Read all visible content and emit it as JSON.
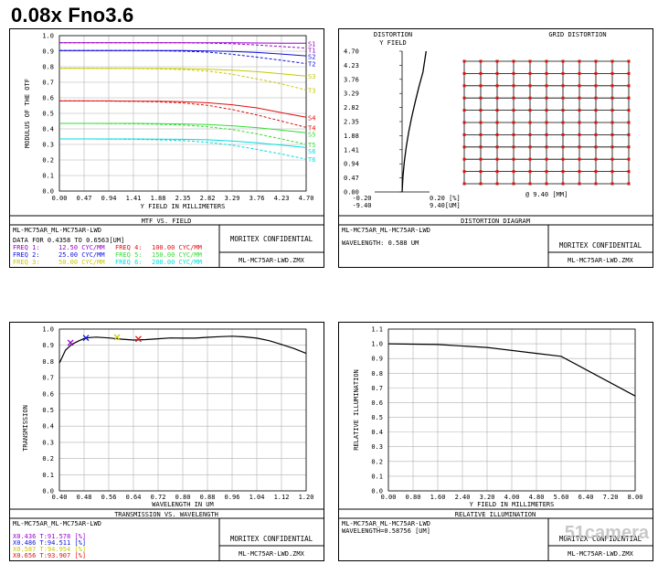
{
  "heading": "0.08x Fno3.6",
  "watermark": "51camera",
  "colors": {
    "purple": "#9900cc",
    "blue": "#1010e0",
    "yellow": "#c8c800",
    "red": "#e01010",
    "green": "#33dd33",
    "cyan": "#00dddd",
    "frame": "#000000"
  },
  "mtf": {
    "footer": {
      "title": "MTF VS. FIELD",
      "file1": "ML-MC75AR_ML-MC75AR-LWD",
      "data_for": "DATA FOR 0.4358 TO 0.6563[UM]",
      "freq_rows": [
        {
          "left_label": "FREQ 1:",
          "left_value": "12.50 CYC/MM",
          "right_label": "FREQ 4:",
          "right_value": "100.00 CYC/MM"
        },
        {
          "left_label": "FREQ 2:",
          "left_value": "25.00 CYC/MM",
          "right_label": "FREQ 5:",
          "right_value": "150.00 CYC/MM"
        },
        {
          "left_label": "FREQ 3:",
          "left_value": "50.00 CYC/MM",
          "right_label": "FREQ 6:",
          "right_value": "200.00 CYC/MM"
        }
      ],
      "confidential": "MORITEX CONFIDENTIAL",
      "file2": "ML-MC75AR-LWD.ZMX"
    }
  },
  "dist": {
    "footer": {
      "title": "DISTORTION DIAGRAM",
      "file1": "ML-MC75AR_ML-MC75AR-LWD",
      "wavelength": "WAVELENGTH: 0.588 UM",
      "confidential": "MORITEX CONFIDENTIAL",
      "file2": "ML-MC75AR-LWD.ZMX"
    }
  },
  "trans": {
    "footer": {
      "title": "TRANSMISSION VS. WAVELENGTH",
      "file1": "ML-MC75AR_ML-MC75AR-LWD",
      "rows": [
        "X0.436  T:91.578 [%]",
        "X0.486  T:94.511 [%]",
        "X0.587  T:94.954 [%]",
        "X0.656  T:93.907 [%]"
      ],
      "confidential": "MORITEX CONFIDENTIAL",
      "file2": "ML-MC75AR-LWD.ZMX"
    }
  },
  "ri": {
    "footer": {
      "title": "RELATIVE ILLUMINATION",
      "file1": "ML-MC75AR_ML-MC75AR-LWD",
      "wavelength": "WAVELENGTH=0.58756 [UM]",
      "confidential": "MORITEX CONFIDENTIAL",
      "file2": "ML-MC75AR-LWD.ZMX"
    }
  },
  "chart_data": [
    {
      "type": "line",
      "id": "mtf",
      "xlabel": "Y FIELD IN MILLIMETERS",
      "ylabel": "MODULUS OF THE OTF",
      "xlim": [
        0,
        4.7
      ],
      "ylim": [
        0,
        1.0
      ],
      "xticks": [
        "0.00",
        "0.47",
        "0.94",
        "1.41",
        "1.88",
        "2.35",
        "2.82",
        "3.29",
        "3.76",
        "4.23",
        "4.70"
      ],
      "yticks": [
        "0.0",
        "0.1",
        "0.2",
        "0.3",
        "0.4",
        "0.5",
        "0.6",
        "0.7",
        "0.8",
        "0.9",
        "1.0"
      ],
      "x": [
        0,
        0.47,
        0.94,
        1.41,
        1.88,
        2.35,
        2.82,
        3.29,
        3.76,
        4.23,
        4.7
      ],
      "series": [
        {
          "name": "S1",
          "color": "purple",
          "dash": false,
          "values": [
            0.955,
            0.955,
            0.955,
            0.955,
            0.955,
            0.955,
            0.955,
            0.954,
            0.953,
            0.952,
            0.951
          ]
        },
        {
          "name": "T1",
          "color": "purple",
          "dash": true,
          "values": [
            0.955,
            0.955,
            0.955,
            0.955,
            0.955,
            0.954,
            0.952,
            0.948,
            0.94,
            0.93,
            0.92
          ]
        },
        {
          "name": "S2",
          "color": "blue",
          "dash": false,
          "values": [
            0.905,
            0.905,
            0.905,
            0.905,
            0.905,
            0.904,
            0.902,
            0.898,
            0.892,
            0.882,
            0.87
          ]
        },
        {
          "name": "T2",
          "color": "blue",
          "dash": true,
          "values": [
            0.905,
            0.905,
            0.905,
            0.904,
            0.903,
            0.9,
            0.894,
            0.88,
            0.862,
            0.842,
            0.82
          ]
        },
        {
          "name": "S3",
          "color": "yellow",
          "dash": false,
          "values": [
            0.79,
            0.79,
            0.79,
            0.79,
            0.789,
            0.788,
            0.784,
            0.778,
            0.768,
            0.755,
            0.74
          ]
        },
        {
          "name": "T3",
          "color": "yellow",
          "dash": true,
          "values": [
            0.79,
            0.79,
            0.789,
            0.788,
            0.786,
            0.782,
            0.772,
            0.752,
            0.722,
            0.69,
            0.65
          ]
        },
        {
          "name": "S4",
          "color": "red",
          "dash": false,
          "values": [
            0.58,
            0.58,
            0.58,
            0.579,
            0.578,
            0.575,
            0.568,
            0.555,
            0.535,
            0.505,
            0.475
          ]
        },
        {
          "name": "T4",
          "color": "red",
          "dash": true,
          "values": [
            0.58,
            0.58,
            0.579,
            0.577,
            0.574,
            0.567,
            0.552,
            0.525,
            0.49,
            0.45,
            0.41
          ]
        },
        {
          "name": "S5",
          "color": "green",
          "dash": false,
          "values": [
            0.435,
            0.435,
            0.435,
            0.435,
            0.434,
            0.432,
            0.428,
            0.42,
            0.408,
            0.392,
            0.375
          ]
        },
        {
          "name": "T5",
          "color": "green",
          "dash": true,
          "values": [
            0.435,
            0.435,
            0.434,
            0.433,
            0.43,
            0.425,
            0.414,
            0.395,
            0.368,
            0.335,
            0.3
          ]
        },
        {
          "name": "S6",
          "color": "cyan",
          "dash": false,
          "values": [
            0.335,
            0.335,
            0.335,
            0.335,
            0.334,
            0.333,
            0.33,
            0.322,
            0.31,
            0.295,
            0.28
          ]
        },
        {
          "name": "T6",
          "color": "cyan",
          "dash": true,
          "values": [
            0.335,
            0.335,
            0.334,
            0.333,
            0.33,
            0.325,
            0.314,
            0.295,
            0.268,
            0.238,
            0.205
          ]
        }
      ]
    },
    {
      "type": "line",
      "id": "distortion",
      "title": "DISTORTION",
      "ylabel": "Y FIELD",
      "xlim": [
        -0.2,
        0.2
      ],
      "ylim": [
        0,
        4.7
      ],
      "yticks": [
        "4.70",
        "4.23",
        "3.76",
        "3.29",
        "2.82",
        "2.35",
        "1.88",
        "1.41",
        "0.94",
        "0.47",
        "0.00"
      ],
      "xtick_left": [
        "-0.20",
        "-9.40"
      ],
      "xtick_right": [
        "0.20 [%]",
        "9.40[UM]"
      ],
      "series": [
        {
          "name": "",
          "x": [
            0,
            0.006,
            0.016,
            0.03,
            0.048,
            0.07,
            0.095,
            0.122,
            0.152,
            0.175
          ],
          "y": [
            0,
            0.5,
            1.0,
            1.5,
            2.0,
            2.5,
            3.0,
            3.5,
            4.0,
            4.7
          ]
        }
      ]
    },
    {
      "type": "scatter",
      "id": "grid_distortion",
      "title": "GRID DISTORTION",
      "xlabel": "@ 9.40 [MM]",
      "grid_count": 11
    },
    {
      "type": "line",
      "id": "transmission",
      "xlabel": "WAVELENGTH IN UM",
      "ylabel": "TRANSMISSION",
      "xlim": [
        0.4,
        1.2
      ],
      "ylim": [
        0,
        1.0
      ],
      "xticks": [
        "0.40",
        "0.48",
        "0.56",
        "0.64",
        "0.72",
        "0.80",
        "0.88",
        "0.96",
        "1.04",
        "1.12",
        "1.20"
      ],
      "yticks": [
        "0.0",
        "0.1",
        "0.2",
        "0.3",
        "0.4",
        "0.5",
        "0.6",
        "0.7",
        "0.8",
        "0.9",
        "1.0"
      ],
      "series": [
        {
          "name": "",
          "x": [
            0.4,
            0.42,
            0.44,
            0.46,
            0.48,
            0.5,
            0.52,
            0.56,
            0.6,
            0.64,
            0.68,
            0.72,
            0.76,
            0.8,
            0.84,
            0.88,
            0.92,
            0.96,
            1.0,
            1.04,
            1.08,
            1.12,
            1.16,
            1.2
          ],
          "y": [
            0.79,
            0.87,
            0.905,
            0.925,
            0.942,
            0.948,
            0.95,
            0.945,
            0.938,
            0.932,
            0.935,
            0.94,
            0.945,
            0.944,
            0.944,
            0.949,
            0.953,
            0.956,
            0.952,
            0.944,
            0.928,
            0.905,
            0.88,
            0.85
          ]
        }
      ],
      "markers": [
        {
          "x": 0.436,
          "y": 0.91578,
          "color": "purple"
        },
        {
          "x": 0.486,
          "y": 0.94511,
          "color": "blue"
        },
        {
          "x": 0.587,
          "y": 0.94954,
          "color": "yellow"
        },
        {
          "x": 0.656,
          "y": 0.93907,
          "color": "red"
        }
      ]
    },
    {
      "type": "line",
      "id": "relative_illumination",
      "xlabel": "Y FIELD IN MILLIMETERS",
      "ylabel": "RELATIVE ILLUMINATION",
      "xlim": [
        0,
        8.0
      ],
      "ylim": [
        0,
        1.1
      ],
      "xticks": [
        "0.00",
        "0.80",
        "1.60",
        "2.40",
        "3.20",
        "4.00",
        "4.80",
        "5.60",
        "6.40",
        "7.20",
        "8.00"
      ],
      "yticks": [
        "0.0",
        "0.1",
        "0.2",
        "0.3",
        "0.4",
        "0.5",
        "0.6",
        "0.7",
        "0.8",
        "0.9",
        "1.0",
        "1.1"
      ],
      "series": [
        {
          "name": "",
          "x": [
            0,
            1.6,
            3.2,
            4.8,
            5.6,
            8.0
          ],
          "y": [
            1.0,
            0.995,
            0.975,
            0.935,
            0.915,
            0.645
          ]
        }
      ]
    }
  ]
}
